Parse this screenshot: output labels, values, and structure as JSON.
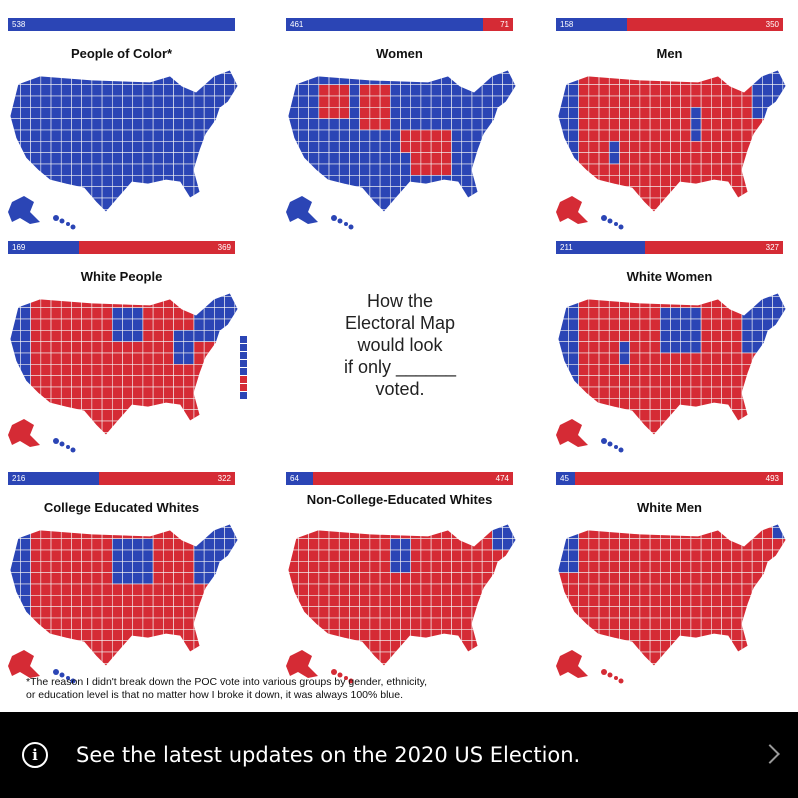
{
  "colors": {
    "dem": "#2b45b5",
    "rep": "#d52b35"
  },
  "panels": [
    {
      "title": "People of Color*",
      "dem": "538",
      "rep": "",
      "dem_ev": 538,
      "rep_ev": 0,
      "scheme": "poc"
    },
    {
      "title": "Women",
      "dem": "461",
      "rep": "71",
      "dem_ev": 461,
      "rep_ev": 71,
      "scheme": "women"
    },
    {
      "title": "Men",
      "dem": "158",
      "rep": "350",
      "dem_ev": 158,
      "rep_ev": 350,
      "scheme": "men"
    },
    {
      "title": "White People",
      "dem": "169",
      "rep": "369",
      "dem_ev": 169,
      "rep_ev": 369,
      "scheme": "white"
    },
    {
      "title": "White Women",
      "dem": "211",
      "rep": "327",
      "dem_ev": 211,
      "rep_ev": 327,
      "scheme": "whitewomen"
    },
    {
      "title": "College Educated Whites",
      "dem": "216",
      "rep": "322",
      "dem_ev": 216,
      "rep_ev": 322,
      "scheme": "college"
    },
    {
      "title": "Non-College-Educated Whites",
      "dem": "64",
      "rep": "474",
      "dem_ev": 64,
      "rep_ev": 474,
      "scheme": "noncollege"
    },
    {
      "title": "White Men",
      "dem": "45",
      "rep": "493",
      "dem_ev": 45,
      "rep_ev": 493,
      "scheme": "whitemen"
    }
  ],
  "center": {
    "line1": "How the",
    "line2": "Electoral Map",
    "line3": "would look",
    "line4": "if only ______",
    "line5": "voted."
  },
  "footnote": {
    "line1": "*The reason I didn't break down the POC vote into various groups by gender, ethnicity,",
    "line2": "or education level is that no matter how I broke it down, it was always 100% blue."
  },
  "banner": {
    "icon": "info-icon",
    "text": "See the latest updates on the 2020 US Election.",
    "chevron": "chevron-right-icon"
  }
}
